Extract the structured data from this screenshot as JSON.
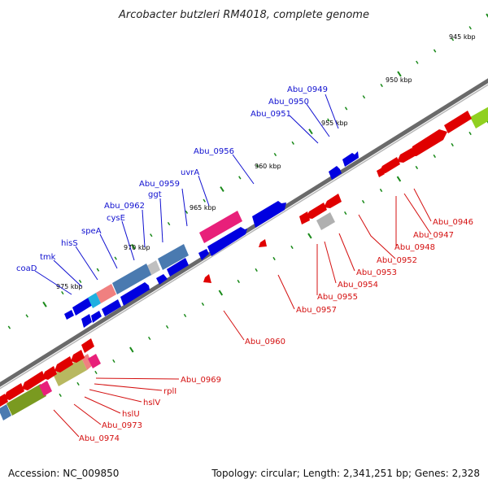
{
  "title": "Arcobacter butzleri RM4018, complete genome",
  "footer": {
    "accession": "Accession: NC_009850",
    "topology": "Topology: circular; Length: 2,341,251 bp; Genes: 2,328"
  },
  "scale": {
    "ticks": [
      {
        "label": "945 kbp",
        "kbp": 945
      },
      {
        "label": "950 kbp",
        "kbp": 950
      },
      {
        "label": "955 kbp",
        "kbp": 955
      },
      {
        "label": "960 kbp",
        "kbp": 960
      },
      {
        "label": "965 kbp",
        "kbp": 965
      },
      {
        "label": "970 kbp",
        "kbp": 970
      },
      {
        "label": "975 kbp",
        "kbp": 975
      }
    ]
  },
  "colors": {
    "forward_gene": "#0000e0",
    "reverse_gene": "#e00000",
    "backbone": "#808080",
    "tick_green": "#1a8a1a",
    "label_blue": "#1010d0",
    "label_red": "#d41010",
    "pink_feature": "#e8207a",
    "steel_feature": "#4a7ab0",
    "salmon_feature": "#f08080",
    "cyan_feature": "#20b0e0",
    "olive_feature": "#7a9a20",
    "khaki_feature": "#b8b860",
    "grey_feature": "#b0b0b0",
    "lime_feature": "#90d020"
  },
  "forward_labels": [
    "Abu_0949",
    "Abu_0950",
    "Abu_0951",
    "Abu_0956",
    "uvrA",
    "ggt",
    "Abu_0959",
    "Abu_0962",
    "cysE",
    "speA",
    "hisS",
    "tmk",
    "coaD"
  ],
  "reverse_labels": [
    "Abu_0946",
    "Abu_0947",
    "Abu_0948",
    "Abu_0952",
    "Abu_0953",
    "Abu_0954",
    "Abu_0955",
    "Abu_0957",
    "Abu_0960",
    "Abu_0969",
    "rplI",
    "hslV",
    "hslU",
    "Abu_0973",
    "Abu_0974"
  ]
}
